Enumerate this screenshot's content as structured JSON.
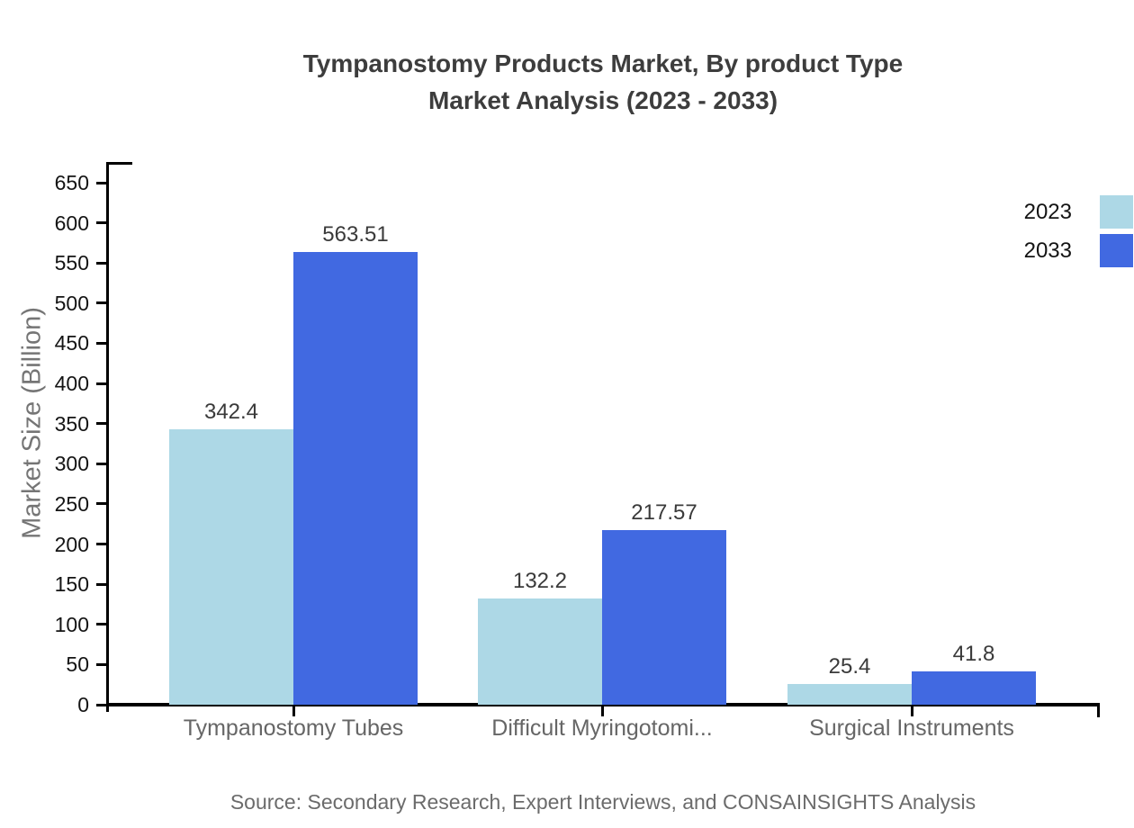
{
  "title": {
    "line1": "Tympanostomy Products Market, By product Type",
    "line2": "Market Analysis (2023 - 2033)"
  },
  "chart_data": {
    "type": "bar",
    "categories": [
      "Tympanostomy Tubes",
      "Difficult Myringotomi...",
      "Surgical Instruments"
    ],
    "series": [
      {
        "name": "2023",
        "color": "#ADD8E6",
        "values": [
          342.4,
          132.2,
          25.4
        ]
      },
      {
        "name": "2033",
        "color": "#4169E1",
        "values": [
          563.51,
          217.57,
          41.8
        ]
      }
    ],
    "value_labels": {
      "2023": [
        "342.4",
        "132.2",
        "25.4"
      ],
      "2033": [
        "563.51",
        "217.57",
        "41.8"
      ]
    },
    "ylabel": "Market Size (Billion)",
    "xlabel": "",
    "ylim": [
      0,
      650
    ],
    "ytick_step": 50,
    "ytick_labels": [
      "0",
      "50",
      "100",
      "150",
      "200",
      "250",
      "300",
      "350",
      "400",
      "450",
      "500",
      "550",
      "600",
      "650"
    ],
    "grid": false,
    "legend_position": "top-right"
  },
  "source": "Source: Secondary Research, Expert Interviews, and CONSAINSIGHTS Analysis",
  "colors": {
    "series_2023": "#ADD8E6",
    "series_2033": "#4169E1",
    "axis": "#000000",
    "title_text": "#3d3d3d",
    "tick_label_text": "#141414",
    "category_label_text": "#666666",
    "value_label_text": "#3a3a3a",
    "axis_title_text": "#757575",
    "source_text": "#6b6b6b",
    "background": "#ffffff"
  }
}
